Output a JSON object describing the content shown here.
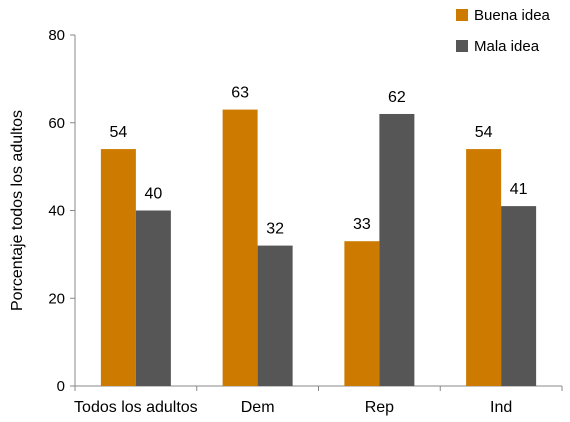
{
  "chart_data": {
    "type": "bar",
    "title": "",
    "ylabel": "Porcentaje todos los adultos",
    "xlabel": "",
    "ylim": [
      0,
      80
    ],
    "yticks": [
      "0",
      "20",
      "40",
      "60",
      "80"
    ],
    "categories": [
      "Todos los adultos",
      "Dem",
      "Rep",
      "Ind"
    ],
    "series": [
      {
        "name": "Buena idea",
        "color": "#CC7A00",
        "values": [
          54,
          63,
          33,
          54
        ]
      },
      {
        "name": "Mala idea",
        "color": "#565656",
        "values": [
          40,
          32,
          62,
          41
        ]
      }
    ],
    "grid": false,
    "legend_position": "top-right"
  }
}
